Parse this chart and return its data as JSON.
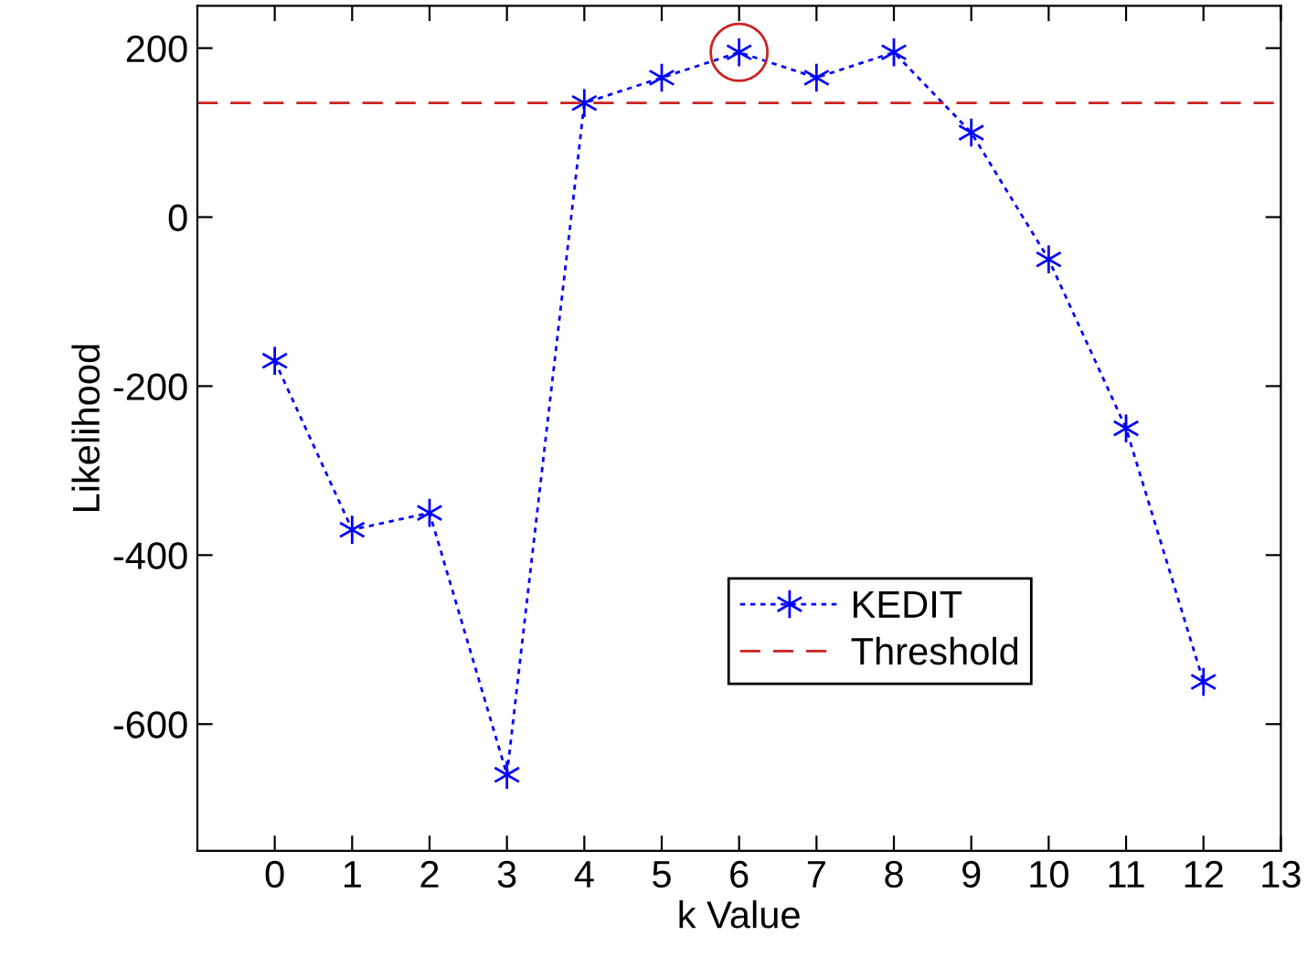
{
  "chart_data": {
    "type": "line",
    "xlabel": "k Value",
    "ylabel": "Likelihood",
    "x": [
      0,
      1,
      2,
      3,
      4,
      5,
      6,
      7,
      8,
      9,
      10,
      11,
      12
    ],
    "series": [
      {
        "name": "KEDIT",
        "color": "#0000ff",
        "marker": "cross",
        "line_style": "dotted",
        "values": [
          -170,
          -370,
          -350,
          -660,
          135,
          165,
          195,
          165,
          195,
          100,
          -50,
          -250,
          -550
        ]
      },
      {
        "type": "scatter",
        "color": "#cc2222",
        "marker": "circle",
        "x": [
          6
        ],
        "values": [
          195
        ]
      }
    ],
    "ref_lines": [
      {
        "axis": "y",
        "value": 135,
        "label": "Threshold",
        "color": "#cc2222",
        "line_style": "dashed"
      }
    ],
    "xlim": [
      -1,
      13
    ],
    "xticks": [
      0,
      1,
      2,
      3,
      4,
      5,
      6,
      7,
      8,
      9,
      10,
      11,
      12,
      13
    ],
    "ylim": [
      -750,
      250
    ],
    "yticks": [
      -600,
      -400,
      -200,
      0,
      200
    ],
    "grid": false,
    "legend": "bottom right"
  }
}
